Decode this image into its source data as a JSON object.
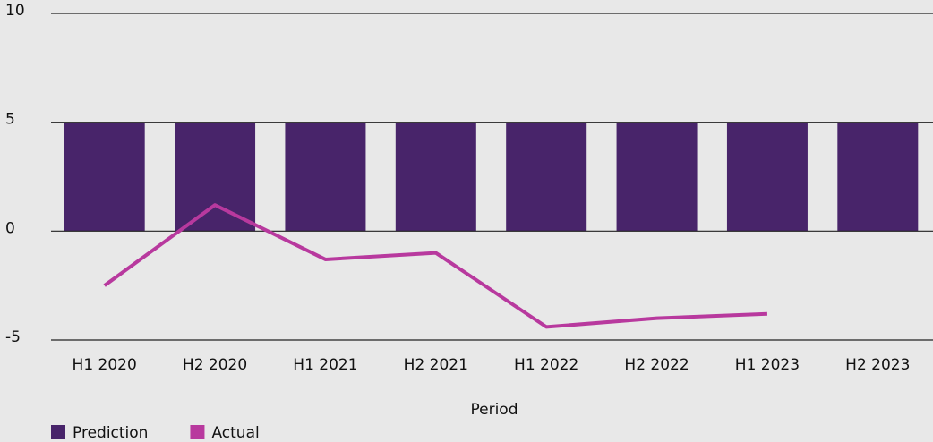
{
  "chart_data": {
    "type": "bar",
    "x_label": "Period",
    "categories": [
      "H1 2020",
      "H2 2020",
      "H1 2021",
      "H2 2021",
      "H1 2022",
      "H2 2022",
      "H1 2023",
      "H2 2023"
    ],
    "series": [
      {
        "name": "Prediction",
        "type": "bar",
        "color": "#48246a",
        "values": [
          5,
          5,
          5,
          5,
          5,
          5,
          5,
          5
        ]
      },
      {
        "name": "Actual",
        "type": "line",
        "color": "#b8399e",
        "values": [
          -2.5,
          1.2,
          -1.3,
          -1.0,
          -4.4,
          -4.0,
          -3.8,
          null
        ]
      }
    ],
    "ylim": [
      -5,
      10
    ],
    "yticks": [
      -5,
      0,
      5,
      10
    ],
    "grid": true,
    "legend": "bottom-left"
  }
}
